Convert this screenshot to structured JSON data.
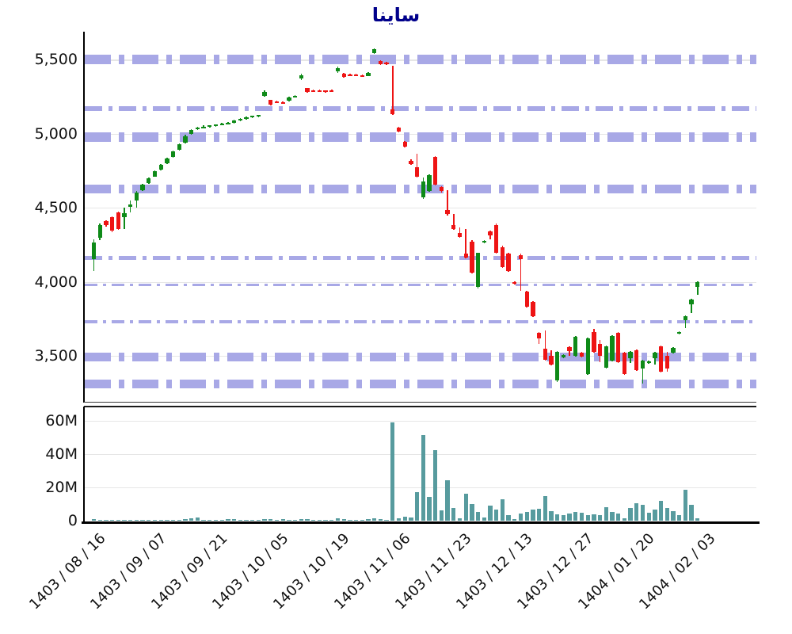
{
  "chart_data": {
    "type": "candlestick_with_volume",
    "title": "ساینا",
    "legend": "none",
    "grid": "on",
    "price_axis": {
      "ticks": [
        "5,500",
        "5,000",
        "4,500",
        "4,000",
        "3,500"
      ],
      "tick_values": [
        5500,
        5000,
        4500,
        4000,
        3500
      ],
      "range": [
        3190,
        5690
      ]
    },
    "volume_axis": {
      "ticks": [
        "60M",
        "40M",
        "20M",
        "0"
      ],
      "tick_values": [
        60,
        40,
        20,
        0
      ],
      "range": [
        0,
        68
      ]
    },
    "x_ticks": [
      "1403 / 08 / 16",
      "1403 / 09 / 07",
      "1403 / 09 / 21",
      "1403 / 10 / 05",
      "1403 / 10 / 19",
      "1403 / 11 / 06",
      "1403 / 11 / 23",
      "1403 / 12 / 13",
      "1403 / 12 / 27",
      "1404 / 01 / 20",
      "1404 / 02 / 03"
    ],
    "candles_per_xtick": 10,
    "sr_lines": [
      [
        5500,
        12
      ],
      [
        5170,
        6
      ],
      [
        4980,
        12
      ],
      [
        4630,
        11
      ],
      [
        4160,
        5
      ],
      [
        3980,
        3
      ],
      [
        3730,
        4
      ],
      [
        3490,
        11
      ],
      [
        3310,
        11
      ]
    ],
    "candles": [
      [
        4152,
        4290,
        4075,
        4268
      ],
      [
        4300,
        4396,
        4282,
        4386
      ],
      [
        4408,
        4416,
        4374,
        4382
      ],
      [
        4436,
        4444,
        4338,
        4346
      ],
      [
        4468,
        4476,
        4350,
        4356
      ],
      [
        4436,
        4500,
        4356,
        4462
      ],
      [
        4506,
        4548,
        4468,
        4522
      ],
      [
        4548,
        4612,
        4500,
        4602
      ],
      [
        4618,
        4662,
        4612,
        4655
      ],
      [
        4665,
        4706,
        4660,
        4700
      ],
      [
        4712,
        4755,
        4708,
        4748
      ],
      [
        4758,
        4798,
        4754,
        4790
      ],
      [
        4800,
        4840,
        4796,
        4832
      ],
      [
        4845,
        4888,
        4840,
        4880
      ],
      [
        4892,
        4935,
        4888,
        4928
      ],
      [
        4940,
        4992,
        4935,
        4985
      ],
      [
        5000,
        5034,
        4996,
        5028
      ],
      [
        5030,
        5048,
        5026,
        5042
      ],
      [
        5042,
        5056,
        5038,
        5050
      ],
      [
        5048,
        5060,
        5044,
        5056
      ],
      [
        5054,
        5066,
        5050,
        5062
      ],
      [
        5060,
        5072,
        5056,
        5068
      ],
      [
        5066,
        5078,
        5062,
        5074
      ],
      [
        5075,
        5094,
        5070,
        5090
      ],
      [
        5088,
        5106,
        5084,
        5102
      ],
      [
        5100,
        5116,
        5096,
        5112
      ],
      [
        5110,
        5124,
        5106,
        5120
      ],
      [
        5118,
        5130,
        5114,
        5126
      ],
      [
        5255,
        5292,
        5250,
        5285
      ],
      [
        5228,
        5232,
        5194,
        5200
      ],
      [
        5218,
        5222,
        5208,
        5212
      ],
      [
        5216,
        5220,
        5206,
        5210
      ],
      [
        5222,
        5250,
        5218,
        5244
      ],
      [
        5248,
        5260,
        5244,
        5256
      ],
      [
        5372,
        5404,
        5366,
        5398
      ],
      [
        5308,
        5312,
        5276,
        5282
      ],
      [
        5296,
        5300,
        5284,
        5288
      ],
      [
        5294,
        5298,
        5282,
        5286
      ],
      [
        5292,
        5296,
        5280,
        5284
      ],
      [
        5294,
        5298,
        5282,
        5286
      ],
      [
        5420,
        5452,
        5414,
        5446
      ],
      [
        5408,
        5412,
        5380,
        5386
      ],
      [
        5402,
        5406,
        5390,
        5394
      ],
      [
        5400,
        5404,
        5388,
        5392
      ],
      [
        5398,
        5402,
        5386,
        5390
      ],
      [
        5392,
        5416,
        5388,
        5410
      ],
      [
        5548,
        5580,
        5542,
        5572
      ],
      [
        5492,
        5496,
        5464,
        5470
      ],
      [
        5480,
        5484,
        5466,
        5470
      ],
      [
        5168,
        5458,
        5126,
        5132
      ],
      [
        5040,
        5046,
        5010,
        5016
      ],
      [
        4944,
        4950,
        4910,
        4916
      ],
      [
        4820,
        4826,
        4790,
        4795
      ],
      [
        4775,
        4868,
        4706,
        4712
      ],
      [
        4572,
        4705,
        4560,
        4678
      ],
      [
        4615,
        4728,
        4608,
        4722
      ],
      [
        4845,
        4852,
        4650,
        4658
      ],
      [
        4640,
        4646,
        4605,
        4612
      ],
      [
        4486,
        4622,
        4450,
        4458
      ],
      [
        4384,
        4460,
        4350,
        4357
      ],
      [
        4330,
        4368,
        4298,
        4303
      ],
      [
        4190,
        4357,
        4158,
        4163
      ],
      [
        4274,
        4280,
        4055,
        4060
      ],
      [
        3964,
        4199,
        3958,
        4194
      ],
      [
        4264,
        4284,
        4258,
        4278
      ],
      [
        4341,
        4346,
        4287,
        4314
      ],
      [
        4384,
        4394,
        4190,
        4196
      ],
      [
        4233,
        4244,
        4094,
        4099
      ],
      [
        4190,
        4196,
        4066,
        4072
      ],
      [
        4000,
        4006,
        3982,
        3988
      ],
      [
        4180,
        4190,
        3938,
        4153
      ],
      [
        3932,
        3938,
        3828,
        3834
      ],
      [
        3862,
        3868,
        3764,
        3770
      ],
      [
        3656,
        3662,
        3581,
        3618
      ],
      [
        3548,
        3672,
        3468,
        3473
      ],
      [
        3500,
        3540,
        3436,
        3441
      ],
      [
        3333,
        3533,
        3326,
        3527
      ],
      [
        3489,
        3512,
        3484,
        3505
      ],
      [
        3560,
        3565,
        3500,
        3532
      ],
      [
        3500,
        3635,
        3495,
        3629
      ],
      [
        3522,
        3528,
        3490,
        3495
      ],
      [
        3376,
        3624,
        3370,
        3618
      ],
      [
        3661,
        3683,
        3522,
        3527
      ],
      [
        3581,
        3608,
        3457,
        3500
      ],
      [
        3419,
        3570,
        3413,
        3565
      ],
      [
        3468,
        3640,
        3462,
        3634
      ],
      [
        3656,
        3662,
        3452,
        3457
      ],
      [
        3522,
        3528,
        3370,
        3376
      ],
      [
        3486,
        3532,
        3452,
        3526
      ],
      [
        3538,
        3544,
        3398,
        3404
      ],
      [
        3416,
        3474,
        3312,
        3468
      ],
      [
        3452,
        3468,
        3446,
        3462
      ],
      [
        3482,
        3526,
        3440,
        3520
      ],
      [
        3566,
        3572,
        3388,
        3394
      ],
      [
        3500,
        3525,
        3395,
        3416
      ],
      [
        3522,
        3562,
        3516,
        3556
      ],
      [
        3650,
        3668,
        3644,
        3662
      ],
      [
        3742,
        3776,
        3688,
        3770
      ],
      [
        3846,
        3884,
        3790,
        3878
      ],
      [
        3966,
        4002,
        3914,
        3996
      ]
    ],
    "volumes_m": [
      0.8,
      0.5,
      0.4,
      0.5,
      0.6,
      0.5,
      0.4,
      0.5,
      0.4,
      0.3,
      0.4,
      0.5,
      0.4,
      0.5,
      0.6,
      0.8,
      1.2,
      1.9,
      0.6,
      0.4,
      0.5,
      0.6,
      1.0,
      0.8,
      0.6,
      0.5,
      0.6,
      0.7,
      1.1,
      0.9,
      0.5,
      0.8,
      0.7,
      0.6,
      1.0,
      0.8,
      0.5,
      0.4,
      0.4,
      0.6,
      1.3,
      0.9,
      0.5,
      0.4,
      0.5,
      0.8,
      1.5,
      1.0,
      0.7,
      59,
      1.5,
      2.5,
      2.0,
      17,
      51,
      14,
      42,
      6,
      24,
      7.5,
      1.5,
      16,
      10,
      5,
      2,
      9,
      6.5,
      13,
      3.5,
      1.0,
      4.5,
      5,
      6.5,
      7,
      14.5,
      5.5,
      4,
      3.5,
      4.4,
      5.2,
      4.7,
      3.1,
      3.6,
      3.1,
      8.3,
      5.2,
      4.4,
      1.6,
      7.5,
      10.6,
      9.4,
      4.7,
      6.7,
      11.9,
      7.8,
      5.9,
      3.1,
      18.4,
      9.4,
      1.6
    ],
    "colors": {
      "up": "#0e8a18",
      "down": "#ee1414",
      "volume": "#579b9e",
      "sr_line": "#a8a8e6",
      "grid": "#e6e6e6",
      "title": "#00008b",
      "text": "#111111"
    }
  }
}
